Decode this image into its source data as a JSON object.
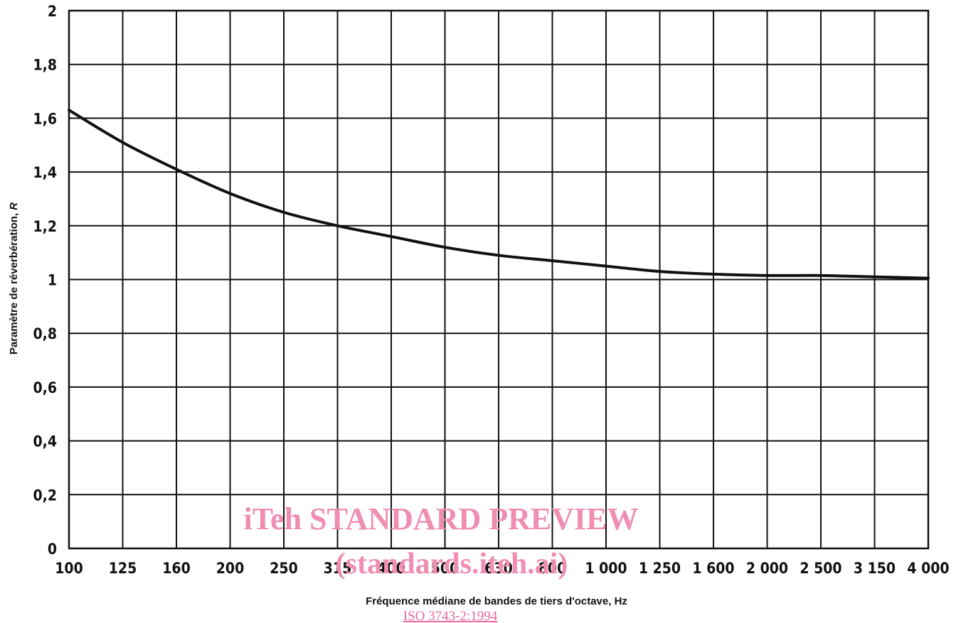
{
  "chart_data": {
    "type": "line",
    "xlabel": "Fréquence médiane de bandes de tiers d'octave, Hz",
    "ylabel_main": "Paramètre de réverbération, ",
    "ylabel_symbol": "R",
    "categories": [
      "100",
      "125",
      "160",
      "200",
      "250",
      "315",
      "400",
      "500",
      "630",
      "800",
      "1 000",
      "1 250",
      "1 600",
      "2 000",
      "2 500",
      "3 150",
      "4 000"
    ],
    "y_ticks": [
      "0",
      "0,2",
      "0,4",
      "0,6",
      "0,8",
      "1",
      "1,2",
      "1,4",
      "1,6",
      "1,8",
      "2"
    ],
    "ylim": [
      0,
      2
    ],
    "grid": true,
    "series": [
      {
        "color": "#111111",
        "values": [
          1.63,
          1.51,
          1.41,
          1.32,
          1.25,
          1.2,
          1.16,
          1.12,
          1.09,
          1.07,
          1.05,
          1.03,
          1.02,
          1.015,
          1.015,
          1.01,
          1.005
        ]
      }
    ]
  },
  "watermark": {
    "line1": "iTeh STANDARD PREVIEW",
    "line2": "(standards.iteh.ai)",
    "line3": "ISO 3743-2:1994",
    "color": "#ef8eb2"
  }
}
